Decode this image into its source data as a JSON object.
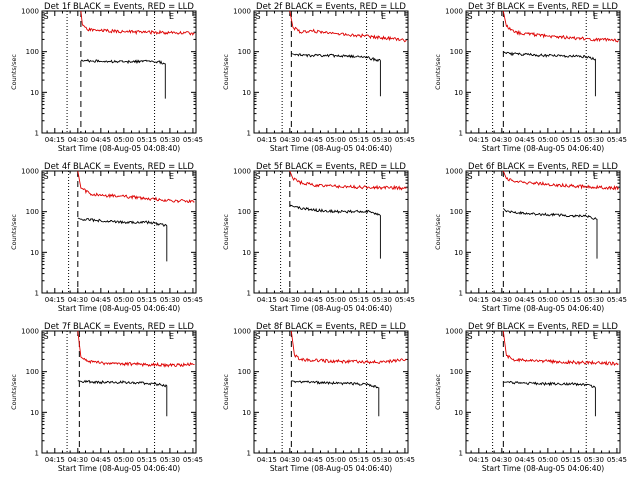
{
  "window": {
    "width": 640,
    "height": 480
  },
  "colors": {
    "events": "#000000",
    "lld": "#dd0000",
    "axes": "#000000",
    "background": "#ffffff"
  },
  "chart_data": [
    {
      "type": "line",
      "title": "Det 1f BLACK = Events, RED = LLD",
      "xlabel": "Start Time (08-Aug-05 04:08:40)",
      "ylabel": "Counts/sec",
      "x_ticks": [
        "04:15",
        "04:30",
        "04:45",
        "05:00",
        "05:15",
        "05:30",
        "05:45"
      ],
      "y_ticks": [
        "1",
        "10",
        "100",
        "1000"
      ],
      "y_scale": "log",
      "ylim": [
        1,
        1000
      ],
      "corner_labels": {
        "start": "S",
        "end": "E"
      },
      "markers": {
        "dotted": [
          "04:23",
          "05:20"
        ],
        "dashed": [
          "04:32"
        ]
      },
      "series": [
        {
          "color": "lld",
          "x": [
            "04:32",
            "04:33",
            "04:36",
            "04:45",
            "05:00",
            "05:15",
            "05:30",
            "05:46"
          ],
          "y": [
            1000,
            450,
            350,
            330,
            310,
            300,
            295,
            280
          ]
        },
        {
          "color": "events",
          "x": [
            "04:32",
            "04:35",
            "04:45",
            "05:00",
            "05:15",
            "05:22",
            "05:27",
            "05:27"
          ],
          "y": [
            60,
            60,
            58,
            56,
            58,
            57,
            50,
            7
          ]
        }
      ]
    },
    {
      "type": "line",
      "title": "Det 2f BLACK = Events, RED = LLD",
      "xlabel": "Start Time (08-Aug-05 04:06:40)",
      "ylabel": "Counts/sec",
      "x_ticks": [
        "04:15",
        "04:30",
        "04:45",
        "05:00",
        "05:15",
        "05:30",
        "05:45"
      ],
      "y_ticks": [
        "1",
        "10",
        "100",
        "1000"
      ],
      "y_scale": "log",
      "ylim": [
        1,
        1000
      ],
      "corner_labels": {
        "start": "S",
        "end": "E"
      },
      "markers": {
        "dotted": [
          "04:25",
          "05:20"
        ],
        "dashed": [
          "04:31"
        ]
      },
      "series": [
        {
          "color": "lld",
          "x": [
            "04:30",
            "04:32",
            "04:37",
            "04:45",
            "05:00",
            "05:15",
            "05:30",
            "05:46"
          ],
          "y": [
            1000,
            400,
            300,
            320,
            280,
            250,
            220,
            190
          ]
        },
        {
          "color": "events",
          "x": [
            "04:31",
            "04:33",
            "04:45",
            "05:00",
            "05:15",
            "05:20",
            "05:29",
            "05:29"
          ],
          "y": [
            90,
            85,
            80,
            80,
            75,
            72,
            60,
            8
          ]
        }
      ]
    },
    {
      "type": "line",
      "title": "Det 3f BLACK = Events, RED = LLD",
      "xlabel": "Start Time (08-Aug-05 04:06:40)",
      "ylabel": "Counts/sec",
      "x_ticks": [
        "04:15",
        "04:30",
        "04:45",
        "05:00",
        "05:15",
        "05:30",
        "05:45"
      ],
      "y_ticks": [
        "1",
        "10",
        "100",
        "1000"
      ],
      "y_scale": "log",
      "ylim": [
        1,
        1000
      ],
      "corner_labels": {
        "start": "S",
        "end": "E"
      },
      "markers": {
        "dotted": [
          "04:24",
          "05:25"
        ],
        "dashed": [
          "04:31"
        ]
      },
      "series": [
        {
          "color": "lld",
          "x": [
            "04:31",
            "04:33",
            "04:38",
            "04:45",
            "05:00",
            "05:15",
            "05:30",
            "05:46"
          ],
          "y": [
            1000,
            420,
            300,
            280,
            240,
            220,
            200,
            190
          ]
        },
        {
          "color": "events",
          "x": [
            "04:31",
            "04:33",
            "04:45",
            "05:00",
            "05:15",
            "05:25",
            "05:31",
            "05:31"
          ],
          "y": [
            100,
            90,
            85,
            80,
            78,
            75,
            65,
            8
          ]
        }
      ]
    },
    {
      "type": "line",
      "title": "Det 4f BLACK = Events, RED = LLD",
      "xlabel": "Start Time (08-Aug-05 04:06:40)",
      "ylabel": "Counts/sec",
      "x_ticks": [
        "04:15",
        "04:30",
        "04:45",
        "05:00",
        "05:15",
        "05:30",
        "05:45"
      ],
      "y_ticks": [
        "1",
        "10",
        "100",
        "1000"
      ],
      "y_scale": "log",
      "ylim": [
        1,
        1000
      ],
      "corner_labels": {
        "start": "S",
        "end": "E"
      },
      "markers": {
        "dotted": [
          "04:24",
          "05:20"
        ],
        "dashed": [
          "04:30"
        ]
      },
      "series": [
        {
          "color": "lld",
          "x": [
            "04:30",
            "04:32",
            "04:38",
            "04:45",
            "05:00",
            "05:15",
            "05:30",
            "05:46"
          ],
          "y": [
            1000,
            380,
            280,
            250,
            240,
            210,
            190,
            175
          ]
        },
        {
          "color": "events",
          "x": [
            "04:30",
            "04:32",
            "04:45",
            "05:00",
            "05:15",
            "05:20",
            "05:28",
            "05:28"
          ],
          "y": [
            70,
            65,
            60,
            55,
            55,
            52,
            45,
            6
          ]
        }
      ]
    },
    {
      "type": "line",
      "title": "Det 5f BLACK = Events, RED = LLD",
      "xlabel": "Start Time (08-Aug-05 04:06:40)",
      "ylabel": "Counts/sec",
      "x_ticks": [
        "04:15",
        "04:30",
        "04:45",
        "05:00",
        "05:15",
        "05:30",
        "05:45"
      ],
      "y_ticks": [
        "1",
        "10",
        "100",
        "1000"
      ],
      "y_scale": "log",
      "ylim": [
        1,
        1000
      ],
      "corner_labels": {
        "start": "S",
        "end": "E"
      },
      "markers": {
        "dotted": [
          "04:24",
          "05:20"
        ],
        "dashed": [
          "04:30"
        ]
      },
      "series": [
        {
          "color": "lld",
          "x": [
            "04:30",
            "04:32",
            "04:38",
            "04:45",
            "05:00",
            "05:15",
            "05:30",
            "05:46"
          ],
          "y": [
            1000,
            650,
            500,
            450,
            420,
            400,
            390,
            380
          ]
        },
        {
          "color": "events",
          "x": [
            "04:30",
            "04:33",
            "04:45",
            "05:00",
            "05:15",
            "05:22",
            "05:29",
            "05:29"
          ],
          "y": [
            150,
            130,
            110,
            100,
            100,
            100,
            80,
            7
          ]
        }
      ]
    },
    {
      "type": "line",
      "title": "Det 6f BLACK = Events, RED = LLD",
      "xlabel": "Start Time (08-Aug-05 04:06:40)",
      "ylabel": "Counts/sec",
      "x_ticks": [
        "04:15",
        "04:30",
        "04:45",
        "05:00",
        "05:15",
        "05:30",
        "05:45"
      ],
      "y_ticks": [
        "1",
        "10",
        "100",
        "1000"
      ],
      "y_scale": "log",
      "ylim": [
        1,
        1000
      ],
      "corner_labels": {
        "start": "S",
        "end": "E"
      },
      "markers": {
        "dotted": [
          "04:24",
          "05:25"
        ],
        "dashed": [
          "04:31"
        ]
      },
      "series": [
        {
          "color": "lld",
          "x": [
            "04:31",
            "04:33",
            "04:38",
            "04:45",
            "05:00",
            "05:15",
            "05:30",
            "05:46"
          ],
          "y": [
            1000,
            650,
            550,
            520,
            470,
            430,
            400,
            380
          ]
        },
        {
          "color": "events",
          "x": [
            "04:31",
            "04:33",
            "04:45",
            "05:00",
            "05:15",
            "05:25",
            "05:32",
            "05:32"
          ],
          "y": [
            120,
            100,
            90,
            85,
            80,
            78,
            65,
            7
          ]
        }
      ]
    },
    {
      "type": "line",
      "title": "Det 7f BLACK = Events, RED = LLD",
      "xlabel": "Start Time (08-Aug-05 04:06:40)",
      "ylabel": "Counts/sec",
      "x_ticks": [
        "04:15",
        "04:30",
        "04:45",
        "05:00",
        "05:15",
        "05:30",
        "05:45"
      ],
      "y_ticks": [
        "1",
        "10",
        "100",
        "1000"
      ],
      "y_scale": "log",
      "ylim": [
        1,
        1000
      ],
      "corner_labels": {
        "start": "S",
        "end": "E"
      },
      "markers": {
        "dotted": [
          "04:23",
          "05:20"
        ],
        "dashed": [
          "04:31"
        ]
      },
      "series": [
        {
          "color": "lld",
          "x": [
            "04:30",
            "04:32",
            "04:36",
            "04:45",
            "05:00",
            "05:15",
            "05:30",
            "05:46"
          ],
          "y": [
            1000,
            230,
            180,
            165,
            155,
            150,
            145,
            150
          ]
        },
        {
          "color": "events",
          "x": [
            "04:30",
            "04:32",
            "04:45",
            "05:00",
            "05:15",
            "05:20",
            "05:28",
            "05:28"
          ],
          "y": [
            60,
            58,
            55,
            55,
            52,
            50,
            45,
            8
          ]
        }
      ]
    },
    {
      "type": "line",
      "title": "Det 8f BLACK = Events, RED = LLD",
      "xlabel": "Start Time (08-Aug-05 04:06:40)",
      "ylabel": "Counts/sec",
      "x_ticks": [
        "04:15",
        "04:30",
        "04:45",
        "05:00",
        "05:15",
        "05:30",
        "05:45"
      ],
      "y_ticks": [
        "1",
        "10",
        "100",
        "1000"
      ],
      "y_scale": "log",
      "ylim": [
        1,
        1000
      ],
      "corner_labels": {
        "start": "S",
        "end": "E"
      },
      "markers": {
        "dotted": [
          "04:25",
          "05:20"
        ],
        "dashed": [
          "04:31"
        ]
      },
      "series": [
        {
          "color": "lld",
          "x": [
            "04:31",
            "04:33",
            "04:37",
            "04:45",
            "05:00",
            "05:15",
            "05:30",
            "05:46"
          ],
          "y": [
            1000,
            260,
            200,
            190,
            180,
            175,
            170,
            200
          ]
        },
        {
          "color": "events",
          "x": [
            "04:31",
            "04:33",
            "04:45",
            "05:00",
            "05:15",
            "05:20",
            "05:28",
            "05:28"
          ],
          "y": [
            60,
            58,
            55,
            52,
            50,
            48,
            40,
            8
          ]
        }
      ]
    },
    {
      "type": "line",
      "title": "Det 9f BLACK = Events, RED = LLD",
      "xlabel": "Start Time (08-Aug-05 04:06:40)",
      "ylabel": "Counts/sec",
      "x_ticks": [
        "04:15",
        "04:30",
        "04:45",
        "05:00",
        "05:15",
        "05:30",
        "05:45"
      ],
      "y_ticks": [
        "1",
        "10",
        "100",
        "1000"
      ],
      "y_scale": "log",
      "ylim": [
        1,
        1000
      ],
      "corner_labels": {
        "start": "S",
        "end": "E"
      },
      "markers": {
        "dotted": [
          "04:24",
          "05:25"
        ],
        "dashed": [
          "04:31"
        ]
      },
      "series": [
        {
          "color": "lld",
          "x": [
            "04:31",
            "04:33",
            "04:37",
            "04:45",
            "05:00",
            "05:15",
            "05:30",
            "05:46"
          ],
          "y": [
            1000,
            250,
            200,
            190,
            180,
            170,
            165,
            155
          ]
        },
        {
          "color": "events",
          "x": [
            "04:31",
            "04:33",
            "04:45",
            "05:00",
            "05:15",
            "05:25",
            "05:31",
            "05:31"
          ],
          "y": [
            55,
            55,
            52,
            50,
            50,
            48,
            40,
            8
          ]
        }
      ]
    }
  ]
}
